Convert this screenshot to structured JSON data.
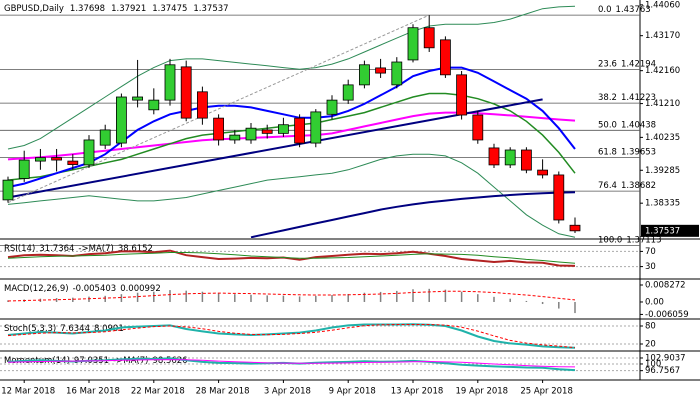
{
  "chart_data": [
    {
      "type": "candlestick",
      "title": "GBPUSD,Daily",
      "categories": [
        null,
        "12 Mar 2018",
        null,
        null,
        null,
        "16 Mar 2018",
        null,
        null,
        null,
        "22 Mar 2018",
        null,
        null,
        null,
        "28 Mar 2018",
        null,
        null,
        null,
        "3 Apr 2018",
        null,
        null,
        null,
        "9 Apr 2018",
        null,
        null,
        null,
        "13 Apr 2018",
        null,
        null,
        null,
        "19 Apr 2018",
        null,
        null,
        null,
        "25 Apr 2018",
        null,
        null
      ],
      "open": [
        1.3843,
        1.3905,
        1.3955,
        1.3965,
        1.3955,
        1.3944,
        1.4001,
        1.4007,
        1.4131,
        1.4103,
        1.4131,
        1.4227,
        1.4155,
        1.4079,
        1.4016,
        1.4016,
        1.4045,
        1.4035,
        1.4079,
        1.4007,
        1.409,
        1.4131,
        1.4175,
        1.4224,
        1.4175,
        1.4247,
        1.434,
        1.4305,
        1.4204,
        1.4088,
        1.3993,
        1.3944,
        1.3987,
        1.3929,
        1.3915,
        1.37698
      ],
      "high": [
        1.391,
        1.3985,
        1.399,
        1.399,
        1.3975,
        1.403,
        1.406,
        1.415,
        1.4247,
        1.4165,
        1.425,
        1.4245,
        1.417,
        1.409,
        1.4045,
        1.4065,
        1.406,
        1.408,
        1.409,
        1.4105,
        1.4145,
        1.419,
        1.4245,
        1.425,
        1.4255,
        1.435,
        1.43763,
        1.4315,
        1.4215,
        1.41,
        1.4005,
        1.3995,
        1.3995,
        1.396,
        1.3925,
        1.37921
      ],
      "low": [
        1.3835,
        1.3895,
        1.393,
        1.3925,
        1.393,
        1.3935,
        1.399,
        1.3995,
        1.411,
        1.409,
        1.4115,
        1.407,
        1.406,
        1.4,
        1.4005,
        1.4005,
        1.402,
        1.4025,
        1.3995,
        1.3995,
        1.4075,
        1.412,
        1.4165,
        1.4195,
        1.4165,
        1.424,
        1.427,
        1.4195,
        1.4075,
        1.4005,
        1.3935,
        1.3935,
        1.392,
        1.3905,
        1.3775,
        1.37475
      ],
      "close": [
        1.39,
        1.3958,
        1.3965,
        1.3958,
        1.3945,
        1.4016,
        1.4045,
        1.414,
        1.414,
        1.4131,
        1.4233,
        1.4079,
        1.4079,
        1.4016,
        1.403,
        1.405,
        1.4035,
        1.406,
        1.4007,
        1.4097,
        1.4131,
        1.4175,
        1.4233,
        1.4209,
        1.4241,
        1.434,
        1.4282,
        1.4204,
        1.4088,
        1.4016,
        1.3944,
        1.3987,
        1.3929,
        1.3915,
        1.3785,
        1.37537
      ],
      "up_color": "#32cd32",
      "down_color": "#ff0000",
      "series": [
        {
          "color": "#2e8b57",
          "width": 1,
          "values": [
            1.399,
            1.4,
            1.402,
            1.405,
            1.408,
            1.411,
            1.414,
            1.417,
            1.42,
            1.4225,
            1.4245,
            1.425,
            1.425,
            1.4245,
            1.424,
            1.4235,
            1.423,
            1.4225,
            1.422,
            1.4225,
            1.4235,
            1.425,
            1.427,
            1.429,
            1.431,
            1.433,
            1.4345,
            1.435,
            1.435,
            1.435,
            1.4355,
            1.4365,
            1.438,
            1.4395,
            1.44,
            1.4402
          ]
        },
        {
          "color": "#2e8b57",
          "width": 1,
          "values": [
            1.383,
            1.3835,
            1.384,
            1.3845,
            1.385,
            1.3855,
            1.385,
            1.3845,
            1.384,
            1.384,
            1.3845,
            1.385,
            1.386,
            1.387,
            1.388,
            1.389,
            1.39,
            1.3905,
            1.391,
            1.3915,
            1.392,
            1.393,
            1.3945,
            1.396,
            1.397,
            1.3975,
            1.3975,
            1.397,
            1.395,
            1.392,
            1.388,
            1.384,
            1.38,
            1.377,
            1.3745,
            1.3735
          ]
        },
        {
          "color": "#ff00ff",
          "width": 2,
          "values": [
            1.396,
            1.3963,
            1.3966,
            1.397,
            1.3975,
            1.398,
            1.3985,
            1.399,
            1.3995,
            1.4,
            1.4005,
            1.401,
            1.4015,
            1.4018,
            1.402,
            1.4022,
            1.4024,
            1.4026,
            1.4028,
            1.403,
            1.4035,
            1.4045,
            1.4055,
            1.4065,
            1.4075,
            1.4085,
            1.4092,
            1.4095,
            1.4095,
            1.4093,
            1.409,
            1.4087,
            1.4083,
            1.4079,
            1.4075,
            1.4072
          ]
        },
        {
          "color": "#228b22",
          "width": 1.5,
          "values": [
            1.39,
            1.3905,
            1.391,
            1.392,
            1.393,
            1.394,
            1.395,
            1.396,
            1.3975,
            1.399,
            1.4005,
            1.402,
            1.403,
            1.4035,
            1.404,
            1.4045,
            1.405,
            1.4055,
            1.406,
            1.4065,
            1.4075,
            1.4085,
            1.4095,
            1.411,
            1.4125,
            1.414,
            1.415,
            1.415,
            1.4145,
            1.4135,
            1.412,
            1.41,
            1.407,
            1.403,
            1.398,
            1.392
          ]
        },
        {
          "color": "#0000ff",
          "width": 2,
          "values": [
            1.388,
            1.389,
            1.3905,
            1.392,
            1.3935,
            1.395,
            1.3975,
            1.401,
            1.4045,
            1.407,
            1.409,
            1.41,
            1.411,
            1.4115,
            1.4115,
            1.411,
            1.41,
            1.409,
            1.408,
            1.408,
            1.4085,
            1.41,
            1.412,
            1.4145,
            1.417,
            1.42,
            1.4215,
            1.4225,
            1.4225,
            1.421,
            1.4185,
            1.416,
            1.4135,
            1.41,
            1.405,
            1.399
          ]
        },
        {
          "color": "#000080",
          "width": 2,
          "values": [
            null,
            null,
            null,
            null,
            null,
            null,
            null,
            null,
            null,
            null,
            null,
            null,
            null,
            null,
            null,
            1.3735,
            1.3745,
            1.3755,
            1.3765,
            1.3775,
            1.3785,
            1.3795,
            1.3805,
            1.3815,
            1.3823,
            1.383,
            1.3836,
            1.3841,
            1.3846,
            1.385,
            1.3854,
            1.3857,
            1.386,
            1.3862,
            1.3864,
            1.3865
          ]
        }
      ],
      "lines": [
        {
          "color": "#000080",
          "width": 2,
          "dashed": false,
          "x": [
            0,
            33
          ],
          "values": [
            1.385,
            1.4133
          ]
        },
        {
          "color": "#999999",
          "width": 1,
          "dashed": true,
          "x": [
            0,
            26
          ],
          "values": [
            1.3835,
            1.43763
          ]
        }
      ],
      "levels": [
        {
          "label": "0.0",
          "value": 1.43763
        },
        {
          "label": "23.6",
          "value": 1.42194
        },
        {
          "label": "38.2",
          "value": 1.41223
        },
        {
          "label": "50.0",
          "value": 1.40438
        },
        {
          "label": "61.8",
          "value": 1.39653
        },
        {
          "label": "76.4",
          "value": 1.38682
        },
        {
          "label": "100.0",
          "value": 1.37113
        }
      ],
      "level_color": "#555555",
      "ylim": [
        1.3733,
        1.442
      ],
      "yticks": [
        {
          "value": 1.4406,
          "label": "1.44060"
        },
        {
          "value": 1.4317,
          "label": "1.43170"
        },
        {
          "value": 1.4216,
          "label": "1.42160"
        },
        {
          "value": 1.4121,
          "label": "1.41210"
        },
        1.40235,
        1.39285,
        1.38335
      ]
    },
    {
      "type": "line",
      "title": "RSI(14)",
      "ylim": [
        0,
        100
      ],
      "yticks": [
        70,
        30
      ],
      "series": [
        {
          "color": "#b22222",
          "width": 2,
          "values": [
            55,
            60,
            61,
            60,
            58,
            63,
            65,
            70,
            70,
            68,
            72,
            60,
            55,
            50,
            51,
            53,
            52,
            54,
            48,
            55,
            58,
            61,
            64,
            63,
            65,
            69,
            64,
            58,
            50,
            46,
            42,
            45,
            41,
            40,
            33,
            31.7364
          ]
        },
        {
          "name": "->MA(7)",
          "color": "#228b22",
          "width": 1,
          "values": [
            52,
            54,
            56,
            57,
            58,
            59,
            60,
            62,
            64,
            65,
            67,
            67,
            66,
            64,
            61,
            58,
            56,
            54,
            52,
            52,
            53,
            54,
            56,
            58,
            60,
            62,
            64,
            63,
            62,
            60,
            56,
            53,
            49,
            46,
            42,
            38.6152
          ]
        }
      ]
    },
    {
      "type": "macd",
      "title": "MACD(12,26,9)",
      "ylim": [
        -0.0078,
        0.0107
      ],
      "yticks": [
        0.008272,
        {
          "value": 0,
          "label": "0.00"
        },
        -0.006059
      ],
      "series": [
        {
          "color": "#808080",
          "values": [
            0.0008,
            0.0012,
            0.0016,
            0.0019,
            0.0021,
            0.0026,
            0.003,
            0.0038,
            0.0045,
            0.005,
            0.0058,
            0.0055,
            0.005,
            0.0043,
            0.0038,
            0.0035,
            0.0032,
            0.0031,
            0.0027,
            0.003,
            0.0034,
            0.0039,
            0.0045,
            0.0049,
            0.0054,
            0.0062,
            0.0064,
            0.006,
            0.005,
            0.0038,
            0.0025,
            0.0016,
            0.0005,
            -0.001,
            -0.0032,
            -0.005403
          ]
        },
        {
          "color": "#ff0000",
          "width": 1,
          "dashed": true,
          "values": [
            0.0005,
            0.0007,
            0.0009,
            0.0011,
            0.0013,
            0.0016,
            0.0019,
            0.0022,
            0.0026,
            0.0031,
            0.0036,
            0.004,
            0.0042,
            0.0043,
            0.0042,
            0.0041,
            0.0039,
            0.0037,
            0.0035,
            0.0034,
            0.0034,
            0.0035,
            0.0037,
            0.0039,
            0.0042,
            0.0046,
            0.0049,
            0.0052,
            0.0052,
            0.005,
            0.0046,
            0.004,
            0.0034,
            0.0026,
            0.0018,
            0.000992
          ]
        }
      ]
    },
    {
      "type": "line",
      "title": "Stoch(5,3,3)",
      "ylim": [
        0,
        100
      ],
      "yticks": [
        80,
        20
      ],
      "series": [
        {
          "color": "#20b2aa",
          "width": 2,
          "values": [
            50,
            55,
            60,
            58,
            55,
            60,
            65,
            75,
            78,
            80,
            82,
            70,
            62,
            55,
            52,
            50,
            52,
            55,
            58,
            65,
            75,
            82,
            85,
            85,
            85,
            86,
            84,
            80,
            65,
            45,
            30,
            22,
            18,
            12,
            9,
            7.6344
          ]
        },
        {
          "color": "#ff0000",
          "width": 1,
          "dashed": true,
          "values": [
            48,
            52,
            56,
            58,
            57,
            58,
            61,
            67,
            73,
            78,
            80,
            77,
            71,
            62,
            56,
            52,
            51,
            52,
            55,
            59,
            66,
            74,
            81,
            84,
            85,
            85,
            85,
            83,
            76,
            63,
            47,
            32,
            23,
            17,
            13,
            8.0901
          ]
        }
      ]
    },
    {
      "type": "line",
      "title": "Momentum(14)",
      "ylim": [
        93.2,
        105.8
      ],
      "yticks": [
        102.9037,
        100,
        96.7567
      ],
      "series": [
        {
          "color": "#20b2aa",
          "width": 2,
          "values": [
            101.0,
            101.5,
            101.8,
            101.5,
            101.2,
            101.6,
            101.8,
            102.2,
            102.5,
            102.4,
            102.7,
            101.8,
            101.0,
            100.5,
            100.4,
            100.2,
            100.3,
            100.5,
            100.2,
            100.6,
            100.8,
            101.0,
            101.3,
            101.1,
            101.2,
            101.5,
            101.0,
            100.3,
            99.6,
            99.2,
            98.8,
            98.6,
            98.3,
            98.2,
            97.4,
            97.0351
          ]
        },
        {
          "name": "->MA(7)",
          "color": "#ff00ff",
          "width": 1,
          "values": [
            100.8,
            101.0,
            101.2,
            101.3,
            101.4,
            101.5,
            101.6,
            101.8,
            101.9,
            102.0,
            102.1,
            102.0,
            101.8,
            101.4,
            101.1,
            100.8,
            100.5,
            100.4,
            100.3,
            100.3,
            100.4,
            100.5,
            100.7,
            100.8,
            100.9,
            101.1,
            101.2,
            101.0,
            100.8,
            100.4,
            100.0,
            99.6,
            99.2,
            98.9,
            98.7,
            98.5626
          ]
        }
      ]
    }
  ]
}
